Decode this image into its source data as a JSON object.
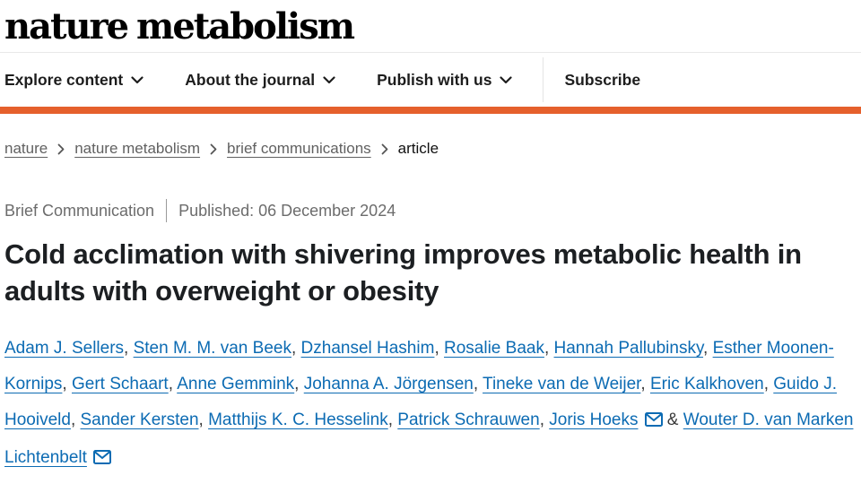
{
  "brand": {
    "logo_text": "nature metabolism"
  },
  "nav": {
    "items": [
      {
        "label": "Explore content",
        "has_dropdown": true
      },
      {
        "label": "About the journal",
        "has_dropdown": true
      },
      {
        "label": "Publish with us",
        "has_dropdown": true
      }
    ],
    "subscribe_label": "Subscribe"
  },
  "breadcrumb": {
    "items": [
      {
        "label": "nature",
        "is_link": true
      },
      {
        "label": "nature metabolism",
        "is_link": true
      },
      {
        "label": "brief communications",
        "is_link": true
      },
      {
        "label": "article",
        "is_link": false
      }
    ]
  },
  "article": {
    "type_label": "Brief Communication",
    "published": "Published: 06 December 2024",
    "title": "Cold acclimation with shivering improves metabolic health in adults with overweight or obesity",
    "authors": [
      {
        "name": "Adam J. Sellers",
        "email_icon": false
      },
      {
        "name": "Sten M. M. van Beek",
        "email_icon": false
      },
      {
        "name": "Dzhansel Hashim",
        "email_icon": false
      },
      {
        "name": "Rosalie Baak",
        "email_icon": false
      },
      {
        "name": "Hannah Pallubinsky",
        "email_icon": false
      },
      {
        "name": "Esther Moonen-Kornips",
        "email_icon": false
      },
      {
        "name": "Gert Schaart",
        "email_icon": false
      },
      {
        "name": "Anne Gemmink",
        "email_icon": false
      },
      {
        "name": "Johanna A. Jörgensen",
        "email_icon": false
      },
      {
        "name": "Tineke van de Weijer",
        "email_icon": false
      },
      {
        "name": "Eric Kalkhoven",
        "email_icon": false
      },
      {
        "name": "Guido J. Hooiveld",
        "email_icon": false
      },
      {
        "name": "Sander Kersten",
        "email_icon": false
      },
      {
        "name": "Matthijs K. C. Hesselink",
        "email_icon": false
      },
      {
        "name": "Patrick Schrauwen",
        "email_icon": false
      },
      {
        "name": "Joris Hoeks",
        "email_icon": true
      },
      {
        "name": "Wouter D. van Marken Lichtenbelt",
        "email_icon": true
      }
    ],
    "author_separator": ", ",
    "last_author_separator": " & "
  },
  "colors": {
    "accent_orange": "#e5602c",
    "link_blue": "#0c6bb3",
    "breadcrumb_gray": "#616161"
  }
}
